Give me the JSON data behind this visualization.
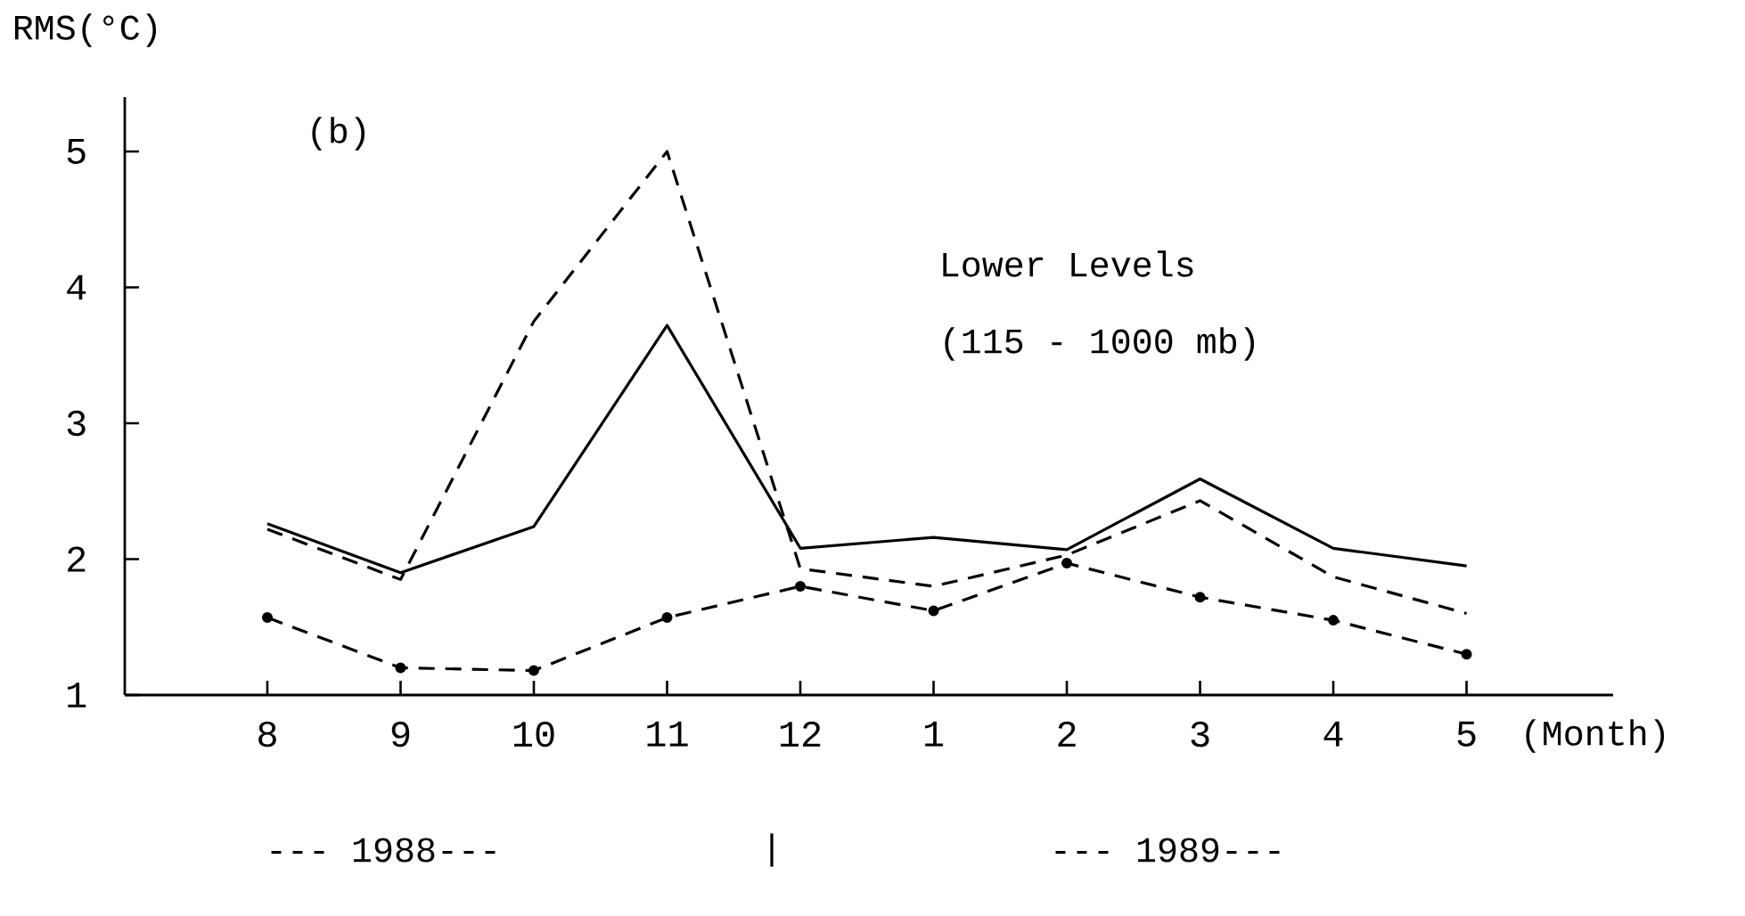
{
  "chart_data": {
    "type": "line",
    "ylabel": "RMS(°C)",
    "xlabel": "(Month)",
    "categories": [
      "8",
      "9",
      "10",
      "11",
      "12",
      "1",
      "2",
      "3",
      "4",
      "5"
    ],
    "series": [
      {
        "color": "#000000",
        "line_style": "solid",
        "marker": "none",
        "values": [
          2.26,
          1.9,
          2.24,
          3.72,
          2.08,
          2.16,
          2.07,
          2.59,
          2.08,
          1.95
        ]
      },
      {
        "color": "#000000",
        "line_style": "dashed",
        "marker": "none",
        "values": [
          2.22,
          1.85,
          3.75,
          5.0,
          1.93,
          1.8,
          2.03,
          2.43,
          1.87,
          1.6
        ]
      },
      {
        "color": "#000000",
        "line_style": "dashed",
        "marker": "circle",
        "values": [
          1.57,
          1.2,
          1.18,
          1.57,
          1.8,
          1.62,
          1.97,
          1.72,
          1.55,
          1.3
        ]
      }
    ],
    "ylim": [
      1,
      5.4
    ],
    "yticks": [
      1,
      2,
      3,
      4,
      5
    ],
    "grid": false,
    "annotations": [
      "(b)",
      "Lower Levels",
      "(115 - 1000 mb)",
      "--- 1988---",
      "|",
      "--- 1989---"
    ]
  }
}
